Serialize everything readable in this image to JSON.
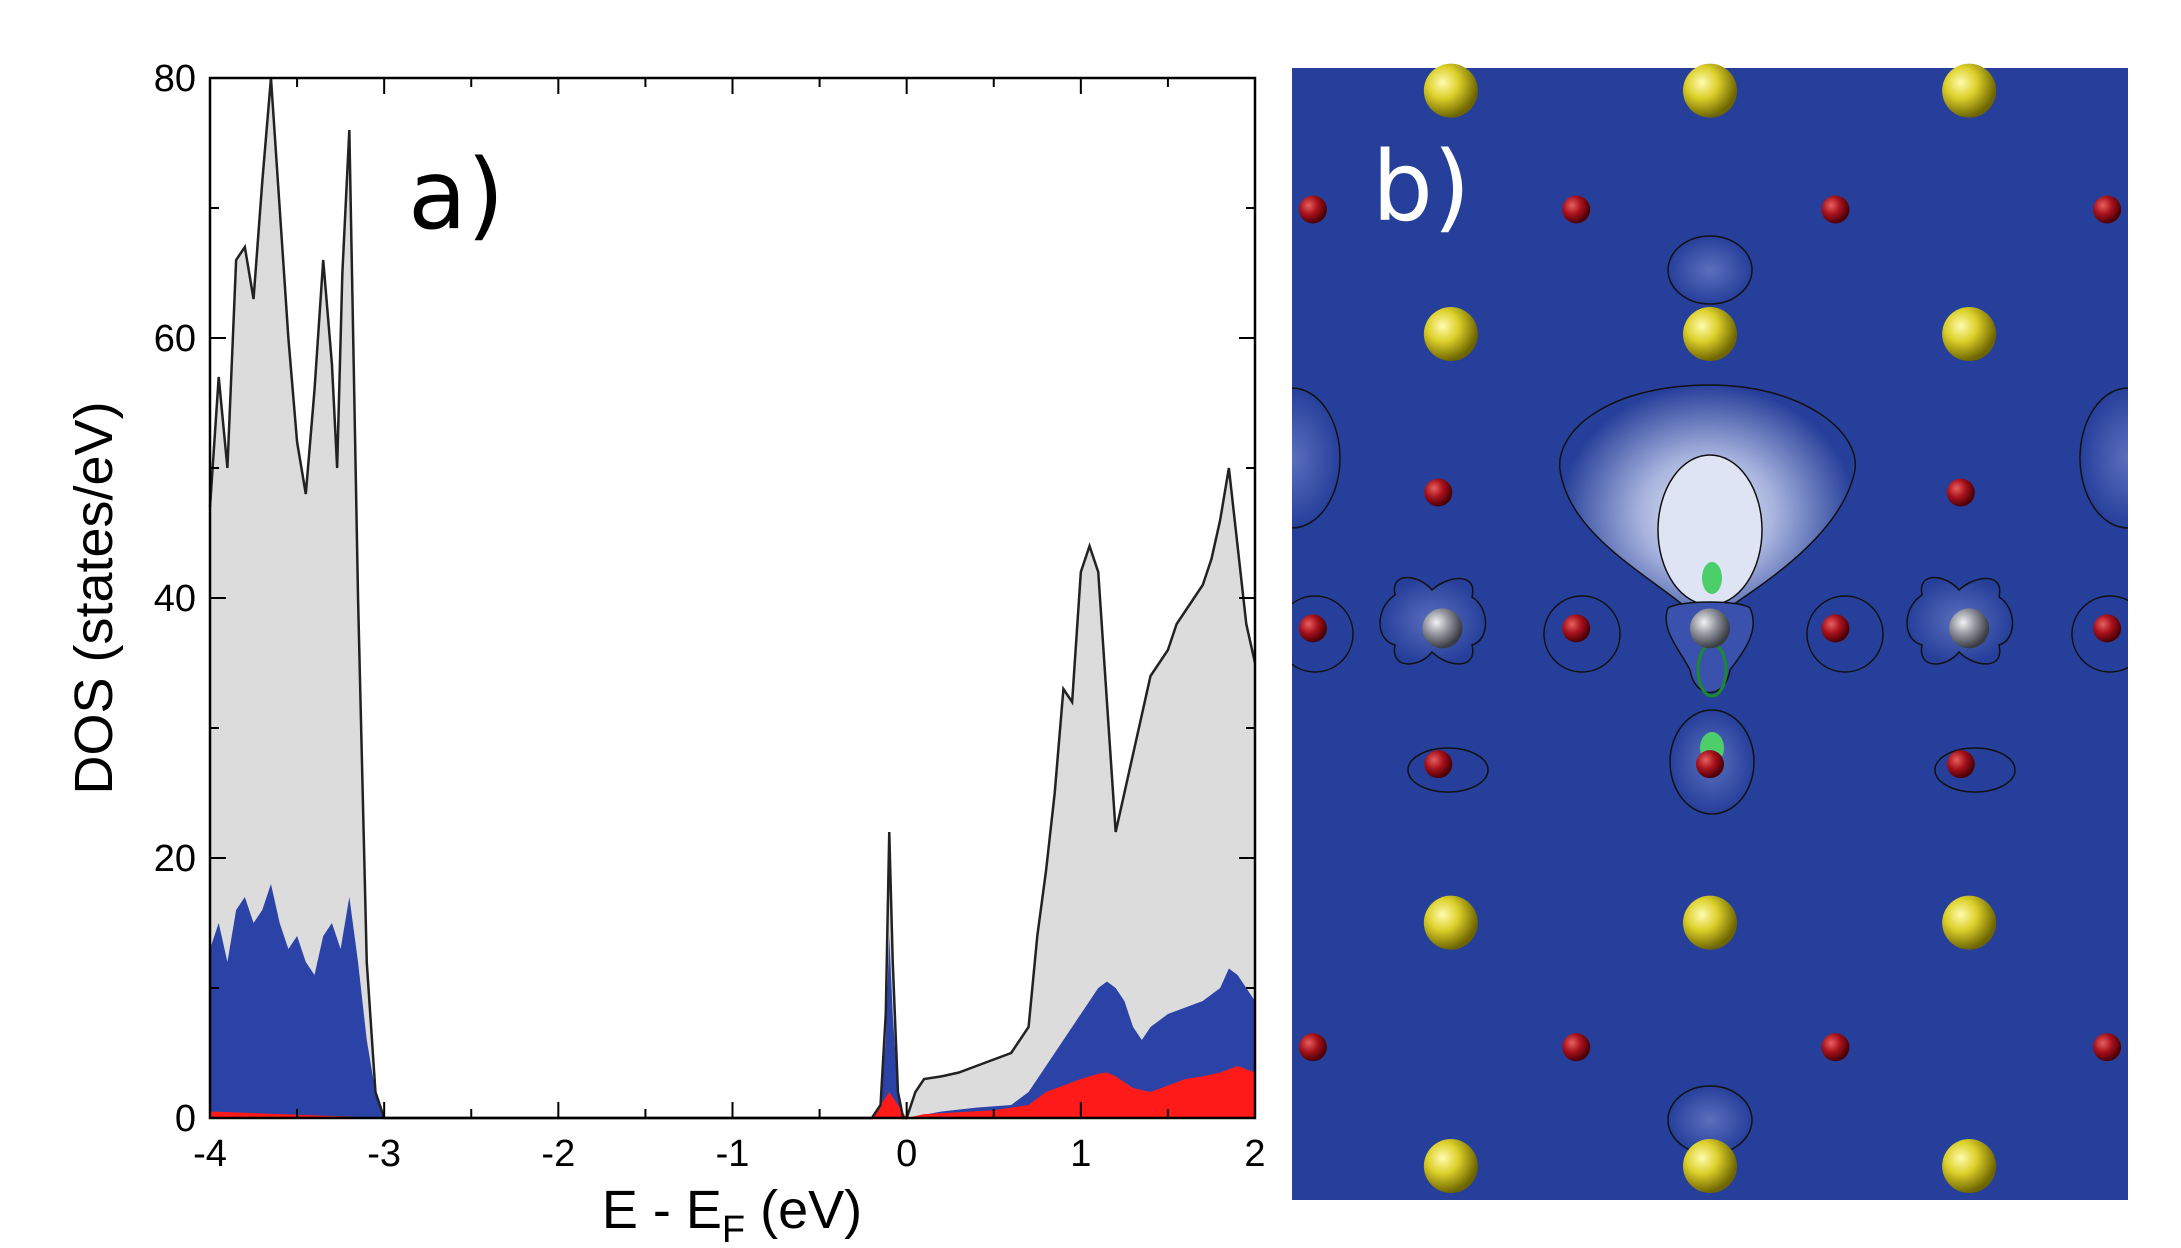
{
  "panel_a": {
    "label": "a)",
    "ylabel": "DOS (states/eV)",
    "xlabel_main": "E - E",
    "xlabel_sub": "F",
    "xlabel_tail": " (eV)"
  },
  "panel_b": {
    "label": "b)",
    "background_color": "#263f9a",
    "atoms": {
      "yellow": [
        [
          0.19,
          0.02
        ],
        [
          0.5,
          0.02
        ],
        [
          0.81,
          0.02
        ],
        [
          0.19,
          0.235
        ],
        [
          0.5,
          0.235
        ],
        [
          0.81,
          0.235
        ],
        [
          0.19,
          0.755
        ],
        [
          0.5,
          0.755
        ],
        [
          0.81,
          0.755
        ],
        [
          0.19,
          0.97
        ],
        [
          0.5,
          0.97
        ],
        [
          0.81,
          0.97
        ]
      ],
      "red": [
        [
          0.025,
          0.125
        ],
        [
          0.34,
          0.125
        ],
        [
          0.65,
          0.125
        ],
        [
          0.975,
          0.125
        ],
        [
          0.175,
          0.375
        ],
        [
          0.8,
          0.375
        ],
        [
          0.025,
          0.495
        ],
        [
          0.34,
          0.495
        ],
        [
          0.65,
          0.495
        ],
        [
          0.975,
          0.495
        ],
        [
          0.175,
          0.615
        ],
        [
          0.5,
          0.615
        ],
        [
          0.8,
          0.615
        ],
        [
          0.025,
          0.865
        ],
        [
          0.34,
          0.865
        ],
        [
          0.65,
          0.865
        ],
        [
          0.975,
          0.865
        ]
      ],
      "gray": [
        [
          0.18,
          0.495
        ],
        [
          0.5,
          0.495
        ],
        [
          0.81,
          0.495
        ]
      ]
    }
  },
  "colors": {
    "total": "#dcdcdc",
    "blue": "#2b43a6",
    "red": "#ff1a1a",
    "line": "#222222"
  },
  "chart_data": {
    "type": "area",
    "title": "",
    "xlabel": "E - E_F (eV)",
    "ylabel": "DOS (states/eV)",
    "xlim": [
      -4,
      2
    ],
    "ylim": [
      0,
      80
    ],
    "xticks": [
      -4,
      -3,
      -2,
      -1,
      0,
      1,
      2
    ],
    "yticks": [
      0,
      20,
      40,
      60,
      80
    ],
    "grid": false,
    "series": [
      {
        "color": "#dcdcdc",
        "x": [
          -4.0,
          -3.95,
          -3.9,
          -3.85,
          -3.8,
          -3.75,
          -3.7,
          -3.65,
          -3.62,
          -3.58,
          -3.55,
          -3.5,
          -3.45,
          -3.4,
          -3.35,
          -3.3,
          -3.27,
          -3.24,
          -3.2,
          -3.15,
          -3.1,
          -3.05,
          -3.0,
          -2.9,
          -1.0,
          -0.2,
          -0.15,
          -0.12,
          -0.1,
          -0.08,
          -0.05,
          -0.02,
          0.0,
          0.05,
          0.1,
          0.2,
          0.3,
          0.4,
          0.5,
          0.6,
          0.7,
          0.75,
          0.8,
          0.85,
          0.9,
          0.95,
          1.0,
          1.05,
          1.1,
          1.15,
          1.2,
          1.25,
          1.3,
          1.35,
          1.4,
          1.45,
          1.5,
          1.55,
          1.6,
          1.65,
          1.7,
          1.75,
          1.8,
          1.85,
          1.9,
          1.95,
          2.0
        ],
        "y": [
          47,
          57,
          50,
          66,
          67,
          63,
          72,
          80,
          74,
          66,
          60,
          52,
          48,
          56,
          66,
          58,
          50,
          65,
          76,
          40,
          12,
          2,
          0,
          0,
          0,
          0,
          1,
          8,
          22,
          12,
          2,
          0,
          0,
          2,
          3,
          3.2,
          3.5,
          4,
          4.5,
          5,
          7,
          14,
          19,
          25,
          33,
          32,
          42,
          44,
          42,
          32,
          22,
          25,
          28,
          31,
          34,
          35,
          36,
          38,
          39,
          40,
          41,
          43,
          46,
          50,
          44,
          38,
          35
        ]
      },
      {
        "color": "#2b43a6",
        "x": [
          -4.0,
          -3.95,
          -3.9,
          -3.85,
          -3.8,
          -3.75,
          -3.7,
          -3.65,
          -3.6,
          -3.55,
          -3.5,
          -3.45,
          -3.4,
          -3.35,
          -3.3,
          -3.25,
          -3.2,
          -3.15,
          -3.1,
          -3.05,
          -3.0,
          -2.9,
          -0.2,
          -0.15,
          -0.12,
          -0.1,
          -0.08,
          -0.05,
          -0.02,
          0.0,
          0.2,
          0.4,
          0.6,
          0.7,
          0.75,
          0.8,
          0.85,
          0.9,
          0.95,
          1.0,
          1.05,
          1.1,
          1.15,
          1.2,
          1.25,
          1.3,
          1.35,
          1.4,
          1.5,
          1.6,
          1.7,
          1.8,
          1.85,
          1.9,
          1.95,
          2.0
        ],
        "y": [
          13,
          15,
          12,
          16,
          17,
          15,
          16,
          18,
          15,
          13,
          14,
          12,
          11,
          14,
          15,
          13,
          17,
          12,
          6,
          2,
          0,
          0,
          0,
          1,
          6,
          14,
          8,
          2,
          0,
          0,
          0.5,
          0.8,
          1,
          2,
          3,
          4,
          5,
          6,
          7,
          8,
          9,
          10,
          10.5,
          10,
          9,
          7,
          6,
          7,
          8,
          8.5,
          9,
          10,
          11.5,
          11,
          10,
          9
        ]
      },
      {
        "color": "#ff1a1a",
        "x": [
          -4.0,
          -3.0,
          -0.2,
          -0.15,
          -0.1,
          -0.05,
          0.0,
          0.1,
          0.5,
          0.7,
          0.8,
          0.9,
          1.0,
          1.1,
          1.15,
          1.2,
          1.3,
          1.4,
          1.5,
          1.6,
          1.7,
          1.8,
          1.9,
          2.0
        ],
        "y": [
          0.5,
          0,
          0,
          1,
          2,
          1,
          0,
          0.3,
          0.6,
          1,
          2,
          2.5,
          3,
          3.4,
          3.5,
          3.2,
          2.3,
          2,
          2.5,
          3,
          3.2,
          3.5,
          4,
          3.5
        ]
      }
    ]
  }
}
